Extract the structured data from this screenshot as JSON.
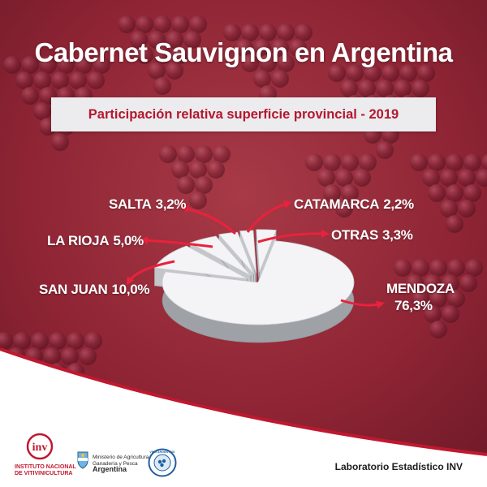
{
  "header": {
    "title": "Cabernet Sauvignon en Argentina",
    "subtitle": "Participación relativa superficie provincial - 2019"
  },
  "chart_data": {
    "type": "pie",
    "title": "Participación relativa superficie provincial - 2019",
    "slices": [
      {
        "name": "MENDOZA",
        "value": 76.3,
        "display": "76,3%"
      },
      {
        "name": "SAN JUAN",
        "value": 10.0,
        "display": "10,0%"
      },
      {
        "name": "LA RIOJA",
        "value": 5.0,
        "display": "5,0%"
      },
      {
        "name": "SALTA",
        "value": 3.2,
        "display": "3,2%"
      },
      {
        "name": "CATAMARCA",
        "value": 2.2,
        "display": "2,2%"
      },
      {
        "name": "OTRAS",
        "value": 3.3,
        "display": "3,3%"
      }
    ],
    "exploded": [
      "SAN JUAN",
      "LA RIOJA",
      "SALTA",
      "CATAMARCA",
      "OTRAS"
    ],
    "colors": {
      "slice_top": "#f4f4f6",
      "slice_side": "#9ea1a6",
      "arrow": "#e8223c"
    }
  },
  "footer": {
    "inv_logo_text": "inv",
    "inv_name_line1": "INSTITUTO NACIONAL",
    "inv_name_line2": "DE VITIVINICULTURA",
    "ministry_line1": "Ministerio de Agricultura,",
    "ministry_line2": "Ganadería y Pesca",
    "ministry_line3": "Argentina",
    "vino_seal_text": "VINO ARGENTINO",
    "lab_label": "Laboratorio Estadístico INV"
  },
  "colors": {
    "background": "#9b2c3a",
    "accent": "#c0182f",
    "subtitle_box": "#ececef"
  }
}
